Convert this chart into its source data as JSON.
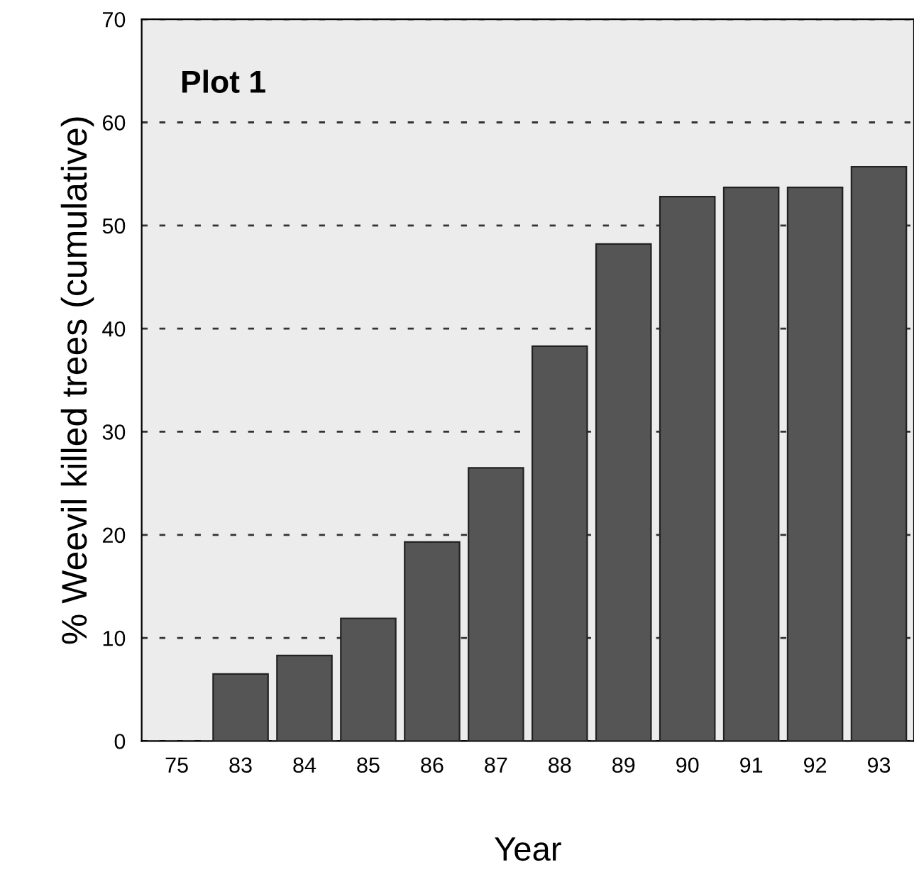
{
  "chart_data": {
    "type": "bar",
    "xlabel": "Year",
    "ylabel": "% Weevil killed trees (cumulative)",
    "annotations": [
      "Plot 1"
    ],
    "categories": [
      "75",
      "83",
      "84",
      "85",
      "86",
      "87",
      "88",
      "89",
      "90",
      "91",
      "92",
      "93"
    ],
    "values": [
      null,
      6.5,
      8.3,
      11.9,
      19.3,
      26.5,
      38.3,
      48.2,
      52.8,
      53.7,
      53.7,
      55.7
    ],
    "color": "#555555",
    "ylim": [
      0,
      70
    ],
    "yticks": [
      0,
      10,
      20,
      30,
      40,
      50,
      60,
      70
    ],
    "grid": "y",
    "line_style": "dashed"
  }
}
